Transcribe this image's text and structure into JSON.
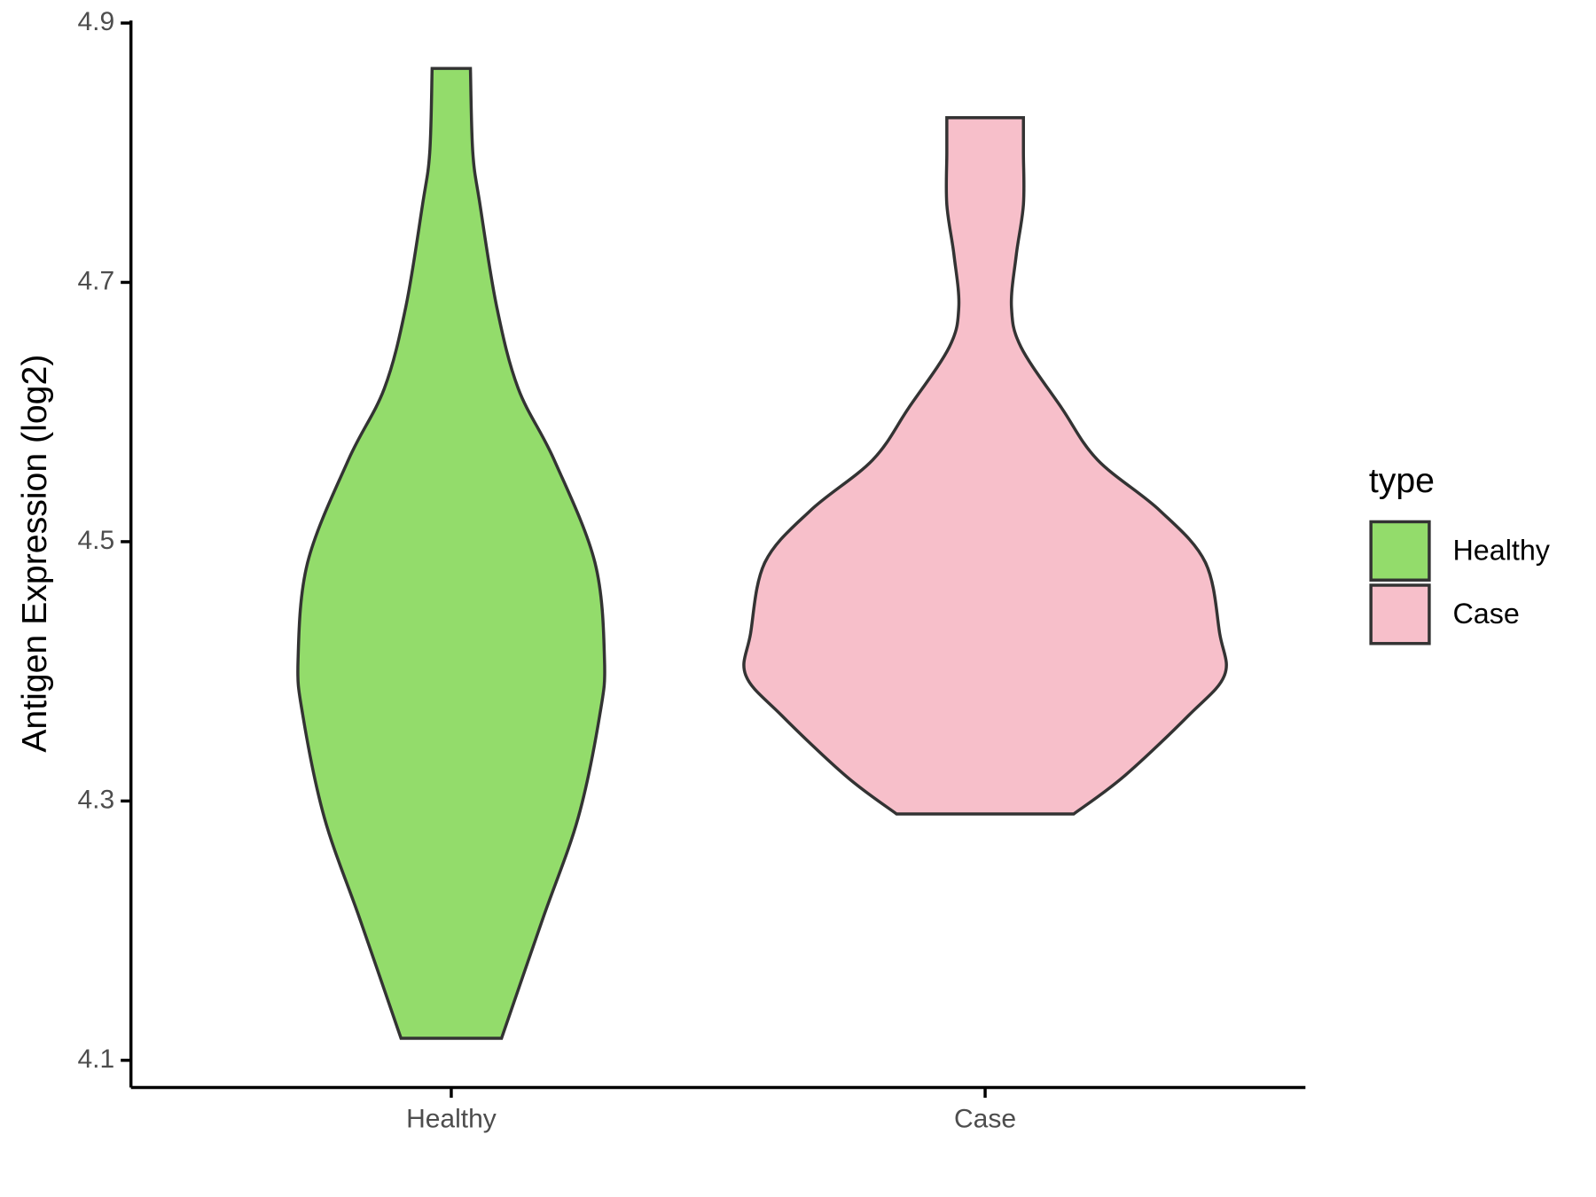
{
  "chart_data": {
    "type": "violin",
    "y_label": "Antigen Expression (log2)",
    "categories": [
      "Healthy",
      "Case"
    ],
    "legend_title": "type",
    "series": [
      {
        "name": "Healthy",
        "color": "#93dc6b",
        "y": [
          4.117,
          4.208,
          4.287,
          4.366,
          4.409,
          4.484,
          4.563,
          4.618,
          4.681,
          4.76,
          4.8,
          4.865
        ],
        "density": [
          0.21,
          0.38,
          0.53,
          0.62,
          0.64,
          0.6,
          0.43,
          0.28,
          0.19,
          0.12,
          0.09,
          0.08
        ]
      },
      {
        "name": "Case",
        "color": "#f7bfca",
        "y": [
          4.29,
          4.319,
          4.366,
          4.397,
          4.429,
          4.484,
          4.524,
          4.563,
          4.603,
          4.65,
          4.681,
          4.721,
          4.76,
          4.8,
          4.827
        ],
        "density": [
          0.37,
          0.58,
          0.85,
          1,
          0.98,
          0.92,
          0.73,
          0.47,
          0.32,
          0.15,
          0.11,
          0.13,
          0.16,
          0.16,
          0.16
        ]
      }
    ],
    "ylim": [
      4.079,
      4.902
    ],
    "yticks": [
      4.1,
      4.3,
      4.5,
      4.7,
      4.9
    ],
    "legend": "right"
  }
}
